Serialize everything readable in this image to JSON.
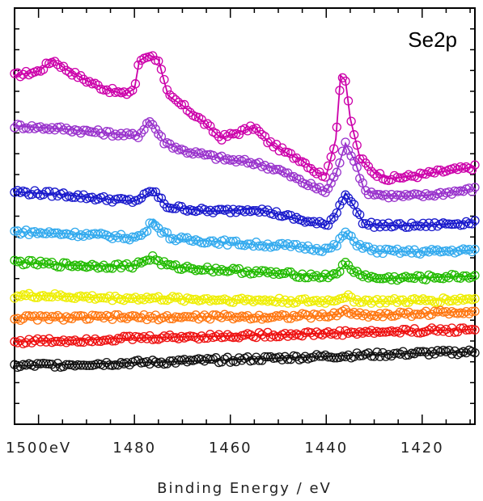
{
  "chart_data": {
    "type": "line",
    "title": "",
    "panel_label": "Se2p",
    "xlabel": "Binding Energy / eV",
    "ylabel": "",
    "xlim": [
      1505,
      1409
    ],
    "ylim": [
      0,
      1
    ],
    "x_reversed": true,
    "x_ticks": [
      {
        "value": 1500,
        "label": "1500eV"
      },
      {
        "value": 1480,
        "label": "1480"
      },
      {
        "value": 1460,
        "label": "1460"
      },
      {
        "value": 1440,
        "label": "1440"
      },
      {
        "value": 1420,
        "label": "1420"
      }
    ],
    "grid": false,
    "legend": "none",
    "marker": "open-circle",
    "series": [
      {
        "color": "#cc00aa",
        "values": [
          [
            1505,
            0.838
          ],
          [
            1500,
            0.848
          ],
          [
            1497,
            0.875
          ],
          [
            1494,
            0.851
          ],
          [
            1490,
            0.826
          ],
          [
            1486,
            0.805
          ],
          [
            1482,
            0.793
          ],
          [
            1480,
            0.806
          ],
          [
            1479,
            0.873
          ],
          [
            1477,
            0.888
          ],
          [
            1475,
            0.876
          ],
          [
            1473,
            0.79
          ],
          [
            1470,
            0.766
          ],
          [
            1466,
            0.73
          ],
          [
            1462,
            0.688
          ],
          [
            1458,
            0.702
          ],
          [
            1455,
            0.714
          ],
          [
            1452,
            0.678
          ],
          [
            1448,
            0.65
          ],
          [
            1445,
            0.634
          ],
          [
            1442,
            0.605
          ],
          [
            1440,
            0.598
          ],
          [
            1438,
            0.685
          ],
          [
            1437,
            0.838
          ],
          [
            1436,
            0.826
          ],
          [
            1435,
            0.735
          ],
          [
            1433,
            0.64
          ],
          [
            1430,
            0.604
          ],
          [
            1427,
            0.59
          ],
          [
            1424,
            0.594
          ],
          [
            1421,
            0.598
          ],
          [
            1418,
            0.604
          ],
          [
            1414,
            0.61
          ],
          [
            1409,
            0.618
          ]
        ]
      },
      {
        "color": "#9933cc",
        "values": [
          [
            1505,
            0.717
          ],
          [
            1500,
            0.713
          ],
          [
            1495,
            0.71
          ],
          [
            1490,
            0.704
          ],
          [
            1486,
            0.7
          ],
          [
            1482,
            0.695
          ],
          [
            1479,
            0.694
          ],
          [
            1477,
            0.73
          ],
          [
            1476,
            0.718
          ],
          [
            1474,
            0.68
          ],
          [
            1470,
            0.658
          ],
          [
            1465,
            0.646
          ],
          [
            1460,
            0.635
          ],
          [
            1455,
            0.628
          ],
          [
            1450,
            0.612
          ],
          [
            1445,
            0.582
          ],
          [
            1440,
            0.558
          ],
          [
            1438,
            0.6
          ],
          [
            1436,
            0.675
          ],
          [
            1434,
            0.632
          ],
          [
            1432,
            0.56
          ],
          [
            1428,
            0.55
          ],
          [
            1424,
            0.548
          ],
          [
            1419,
            0.55
          ],
          [
            1414,
            0.558
          ],
          [
            1409,
            0.565
          ]
        ]
      },
      {
        "color": "#1a1acc",
        "values": [
          [
            1505,
            0.559
          ],
          [
            1500,
            0.555
          ],
          [
            1495,
            0.552
          ],
          [
            1490,
            0.546
          ],
          [
            1485,
            0.54
          ],
          [
            1480,
            0.536
          ],
          [
            1478,
            0.548
          ],
          [
            1476,
            0.563
          ],
          [
            1475,
            0.545
          ],
          [
            1473,
            0.522
          ],
          [
            1470,
            0.519
          ],
          [
            1465,
            0.512
          ],
          [
            1460,
            0.513
          ],
          [
            1455,
            0.518
          ],
          [
            1450,
            0.505
          ],
          [
            1445,
            0.49
          ],
          [
            1440,
            0.478
          ],
          [
            1438,
            0.505
          ],
          [
            1436,
            0.556
          ],
          [
            1434,
            0.52
          ],
          [
            1432,
            0.48
          ],
          [
            1428,
            0.478
          ],
          [
            1424,
            0.477
          ],
          [
            1419,
            0.478
          ],
          [
            1414,
            0.482
          ],
          [
            1409,
            0.486
          ]
        ]
      },
      {
        "color": "#33aaee",
        "values": [
          [
            1505,
            0.463
          ],
          [
            1500,
            0.46
          ],
          [
            1495,
            0.458
          ],
          [
            1490,
            0.456
          ],
          [
            1485,
            0.452
          ],
          [
            1480,
            0.448
          ],
          [
            1478,
            0.458
          ],
          [
            1476,
            0.492
          ],
          [
            1475,
            0.47
          ],
          [
            1472,
            0.446
          ],
          [
            1468,
            0.442
          ],
          [
            1464,
            0.44
          ],
          [
            1460,
            0.436
          ],
          [
            1455,
            0.432
          ],
          [
            1450,
            0.43
          ],
          [
            1445,
            0.426
          ],
          [
            1440,
            0.42
          ],
          [
            1438,
            0.428
          ],
          [
            1436,
            0.462
          ],
          [
            1434,
            0.436
          ],
          [
            1430,
            0.416
          ],
          [
            1425,
            0.415
          ],
          [
            1420,
            0.414
          ],
          [
            1415,
            0.416
          ],
          [
            1409,
            0.418
          ]
        ]
      },
      {
        "color": "#22bb00",
        "values": [
          [
            1505,
            0.39
          ],
          [
            1500,
            0.386
          ],
          [
            1495,
            0.383
          ],
          [
            1490,
            0.381
          ],
          [
            1485,
            0.38
          ],
          [
            1480,
            0.381
          ],
          [
            1478,
            0.392
          ],
          [
            1476,
            0.402
          ],
          [
            1475,
            0.39
          ],
          [
            1472,
            0.378
          ],
          [
            1468,
            0.375
          ],
          [
            1464,
            0.372
          ],
          [
            1460,
            0.37
          ],
          [
            1455,
            0.366
          ],
          [
            1450,
            0.362
          ],
          [
            1445,
            0.358
          ],
          [
            1440,
            0.355
          ],
          [
            1438,
            0.362
          ],
          [
            1436,
            0.385
          ],
          [
            1434,
            0.365
          ],
          [
            1430,
            0.35
          ],
          [
            1425,
            0.351
          ],
          [
            1420,
            0.352
          ],
          [
            1415,
            0.354
          ],
          [
            1409,
            0.356
          ]
        ]
      },
      {
        "color": "#eeee00",
        "values": [
          [
            1505,
            0.308
          ],
          [
            1500,
            0.309
          ],
          [
            1495,
            0.307
          ],
          [
            1490,
            0.305
          ],
          [
            1485,
            0.303
          ],
          [
            1480,
            0.303
          ],
          [
            1475,
            0.302
          ],
          [
            1470,
            0.301
          ],
          [
            1465,
            0.3
          ],
          [
            1460,
            0.299
          ],
          [
            1455,
            0.298
          ],
          [
            1450,
            0.297
          ],
          [
            1445,
            0.296
          ],
          [
            1440,
            0.295
          ],
          [
            1437,
            0.303
          ],
          [
            1436,
            0.308
          ],
          [
            1434,
            0.298
          ],
          [
            1430,
            0.295
          ],
          [
            1425,
            0.296
          ],
          [
            1420,
            0.297
          ],
          [
            1415,
            0.299
          ],
          [
            1409,
            0.301
          ]
        ]
      },
      {
        "color": "#ff7711",
        "values": [
          [
            1505,
            0.255
          ],
          [
            1500,
            0.256
          ],
          [
            1495,
            0.256
          ],
          [
            1490,
            0.256
          ],
          [
            1485,
            0.257
          ],
          [
            1480,
            0.257
          ],
          [
            1475,
            0.257
          ],
          [
            1470,
            0.257
          ],
          [
            1465,
            0.258
          ],
          [
            1460,
            0.258
          ],
          [
            1455,
            0.258
          ],
          [
            1450,
            0.259
          ],
          [
            1445,
            0.26
          ],
          [
            1440,
            0.26
          ],
          [
            1437,
            0.266
          ],
          [
            1436,
            0.275
          ],
          [
            1434,
            0.264
          ],
          [
            1430,
            0.262
          ],
          [
            1425,
            0.264
          ],
          [
            1420,
            0.266
          ],
          [
            1415,
            0.269
          ],
          [
            1409,
            0.272
          ]
        ]
      },
      {
        "color": "#ee1111",
        "values": [
          [
            1505,
            0.198
          ],
          [
            1500,
            0.2
          ],
          [
            1495,
            0.201
          ],
          [
            1490,
            0.203
          ],
          [
            1485,
            0.205
          ],
          [
            1480,
            0.207
          ],
          [
            1475,
            0.208
          ],
          [
            1470,
            0.21
          ],
          [
            1465,
            0.211
          ],
          [
            1460,
            0.212
          ],
          [
            1455,
            0.214
          ],
          [
            1450,
            0.215
          ],
          [
            1445,
            0.217
          ],
          [
            1440,
            0.218
          ],
          [
            1435,
            0.22
          ],
          [
            1430,
            0.221
          ],
          [
            1425,
            0.223
          ],
          [
            1420,
            0.225
          ],
          [
            1415,
            0.226
          ],
          [
            1409,
            0.228
          ]
        ]
      },
      {
        "color": "#111111",
        "values": [
          [
            1505,
            0.14
          ],
          [
            1500,
            0.142
          ],
          [
            1495,
            0.143
          ],
          [
            1490,
            0.145
          ],
          [
            1485,
            0.146
          ],
          [
            1480,
            0.148
          ],
          [
            1475,
            0.149
          ],
          [
            1470,
            0.151
          ],
          [
            1465,
            0.153
          ],
          [
            1460,
            0.155
          ],
          [
            1455,
            0.157
          ],
          [
            1450,
            0.159
          ],
          [
            1445,
            0.161
          ],
          [
            1440,
            0.163
          ],
          [
            1435,
            0.165
          ],
          [
            1430,
            0.167
          ],
          [
            1425,
            0.169
          ],
          [
            1420,
            0.171
          ],
          [
            1415,
            0.172
          ],
          [
            1409,
            0.174
          ]
        ]
      }
    ]
  }
}
